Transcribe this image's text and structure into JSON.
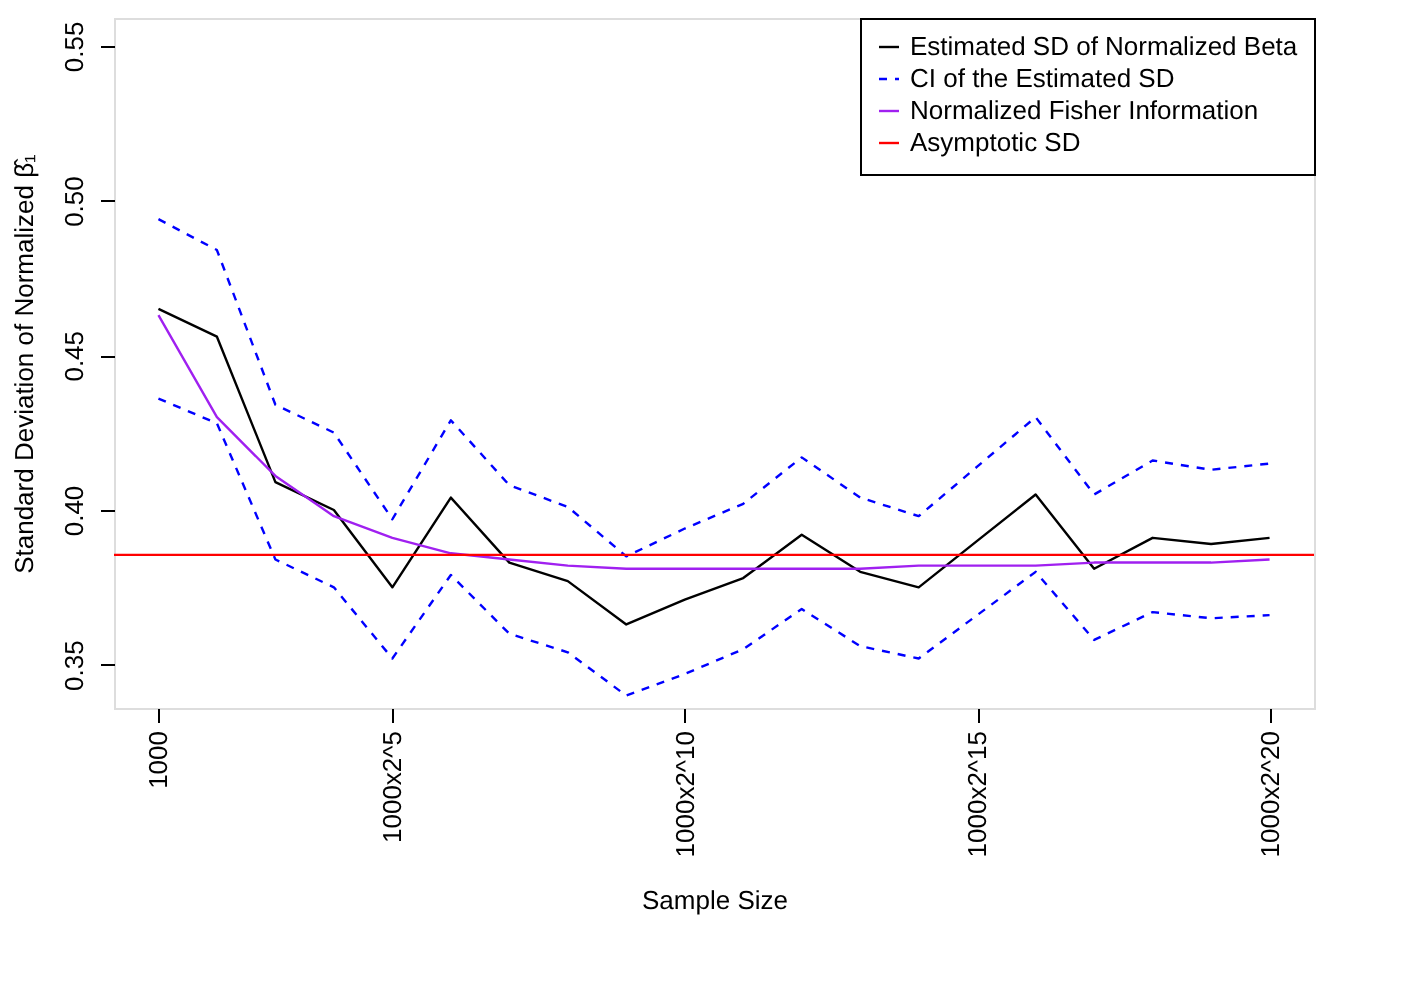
{
  "chart_data": {
    "type": "line",
    "xlabel": "Sample Size",
    "ylabel": "Standard Deviation of Normalized β̂₁",
    "categories": [
      "1000",
      null,
      null,
      null,
      "1000x2^5",
      null,
      null,
      null,
      null,
      "1000x2^10",
      null,
      null,
      null,
      null,
      "1000x2^15",
      null,
      null,
      null,
      null,
      "1000x2^20"
    ],
    "ylim": [
      0.336,
      0.559
    ],
    "yticks": [
      0.35,
      {
        "value": 0.4,
        "label": "0.40"
      },
      0.45,
      {
        "value": 0.5,
        "label": "0.50"
      },
      0.55
    ],
    "series": [
      {
        "name": "Estimated SD of Normalized Beta",
        "color": "#000000",
        "line_style": "solid",
        "values": [
          0.465,
          0.456,
          0.409,
          0.4,
          0.375,
          0.404,
          0.383,
          0.377,
          0.363,
          0.371,
          0.378,
          0.392,
          0.38,
          0.375,
          0.39,
          0.405,
          0.381,
          0.391,
          0.389,
          0.391
        ]
      },
      {
        "name": "CI of the Estimated SD",
        "color": "#0000ff",
        "line_style": "dashed",
        "values": [
          0.494,
          0.484,
          0.434,
          0.425,
          0.397,
          0.429,
          0.408,
          0.401,
          0.385,
          0.394,
          0.402,
          0.417,
          0.404,
          0.398,
          0.414,
          0.43,
          0.405,
          0.416,
          0.413,
          0.415
        ]
      },
      {
        "color": "#0000ff",
        "line_style": "dashed",
        "values": [
          0.436,
          0.428,
          0.384,
          0.375,
          0.352,
          0.379,
          0.36,
          0.354,
          0.34,
          0.347,
          0.355,
          0.368,
          0.356,
          0.352,
          0.366,
          0.38,
          0.358,
          0.367,
          0.365,
          0.366
        ]
      },
      {
        "name": "Normalized Fisher Information",
        "color": "#a020f0",
        "line_style": "solid",
        "values": [
          0.463,
          0.43,
          0.411,
          0.398,
          0.391,
          0.386,
          0.384,
          0.382,
          0.381,
          0.381,
          0.381,
          0.381,
          0.381,
          0.382,
          0.382,
          0.382,
          0.383,
          0.383,
          0.383,
          0.384
        ]
      }
    ],
    "ref_lines": [
      {
        "axis": "y",
        "value": 0.3855,
        "label": "Asymptotic SD",
        "color": "#ff0000",
        "line_style": "solid"
      }
    ],
    "legend": "top right",
    "grid": false,
    "marker": "none"
  }
}
